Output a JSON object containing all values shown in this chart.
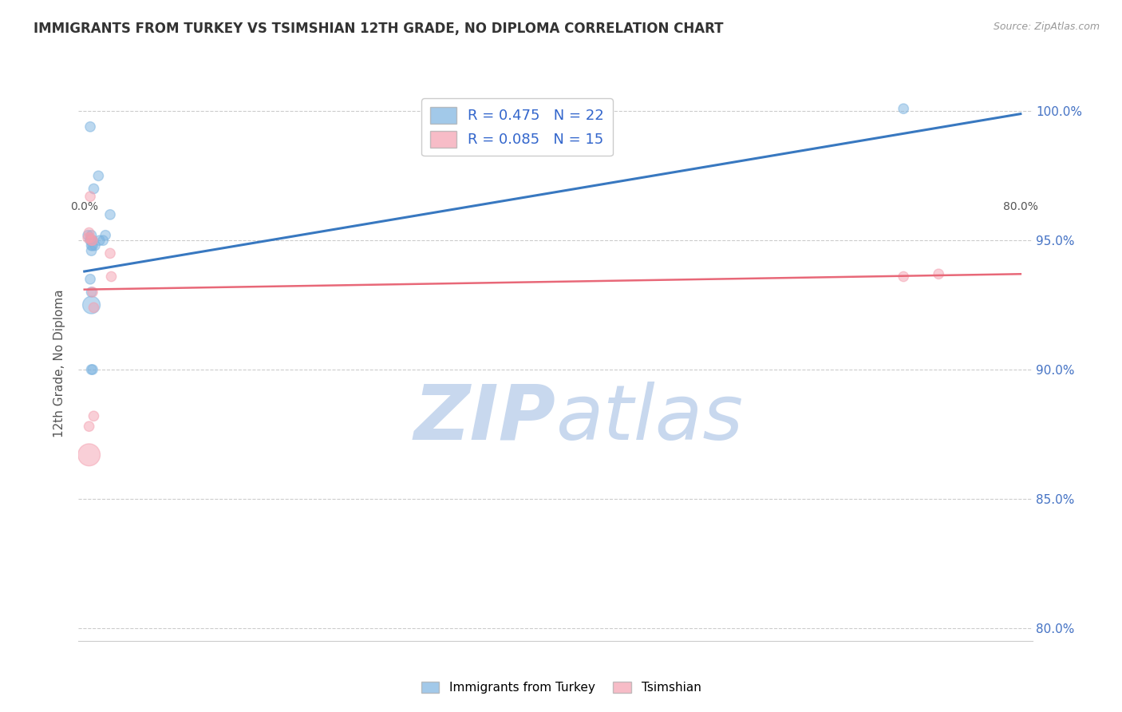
{
  "title": "IMMIGRANTS FROM TURKEY VS TSIMSHIAN 12TH GRADE, NO DIPLOMA CORRELATION CHART",
  "source": "Source: ZipAtlas.com",
  "ylabel": "12th Grade, No Diploma",
  "legend_r1": "R = 0.475   N = 22",
  "legend_r2": "R = 0.085   N = 15",
  "legend_label1": "Immigrants from Turkey",
  "legend_label2": "Tsimshian",
  "turkey_scatter_x": [
    0.005,
    0.012,
    0.008,
    0.003,
    0.005,
    0.006,
    0.007,
    0.006,
    0.006,
    0.007,
    0.009,
    0.013,
    0.018,
    0.022,
    0.006,
    0.006,
    0.007,
    0.005,
    0.016,
    0.006,
    0.7,
    0.006
  ],
  "turkey_scatter_y": [
    0.994,
    0.975,
    0.97,
    0.952,
    0.95,
    0.948,
    0.948,
    0.95,
    0.952,
    0.95,
    0.948,
    0.95,
    0.952,
    0.96,
    0.93,
    0.9,
    0.9,
    0.935,
    0.95,
    0.946,
    1.001,
    0.925
  ],
  "turkey_scatter_sizes": [
    80,
    80,
    80,
    80,
    80,
    80,
    80,
    80,
    80,
    80,
    80,
    80,
    80,
    80,
    80,
    80,
    80,
    80,
    80,
    80,
    80,
    250
  ],
  "tsimshian_scatter_x": [
    0.003,
    0.004,
    0.005,
    0.005,
    0.006,
    0.007,
    0.007,
    0.008,
    0.008,
    0.023,
    0.022,
    0.7,
    0.73,
    0.004,
    0.004
  ],
  "tsimshian_scatter_y": [
    0.951,
    0.953,
    0.967,
    0.951,
    0.95,
    0.95,
    0.93,
    0.924,
    0.882,
    0.936,
    0.945,
    0.936,
    0.937,
    0.878,
    0.867
  ],
  "tsimshian_scatter_sizes": [
    80,
    80,
    80,
    80,
    80,
    80,
    80,
    80,
    80,
    80,
    80,
    80,
    80,
    80,
    400
  ],
  "turkey_line_x": [
    0.0,
    0.8
  ],
  "turkey_line_y": [
    0.938,
    0.999
  ],
  "tsimshian_line_x": [
    0.0,
    0.8
  ],
  "tsimshian_line_y": [
    0.931,
    0.937
  ],
  "blue_color": "#7BB3E0",
  "pink_color": "#F4A0B0",
  "blue_line_color": "#3878C0",
  "pink_line_color": "#E86878",
  "watermark_zip_color": "#C8D8EE",
  "watermark_atlas_color": "#C8D8EE",
  "grid_color": "#CCCCCC",
  "bg_color": "#FFFFFF",
  "right_axis_color": "#4472C4",
  "ymin": 0.795,
  "ymax": 1.01,
  "xmin": -0.005,
  "xmax": 0.81,
  "ytick_vals": [
    0.8,
    0.85,
    0.9,
    0.95,
    1.0
  ],
  "ytick_labels": [
    "80.0%",
    "85.0%",
    "90.0%",
    "95.0%",
    "100.0%"
  ],
  "xtick_vals": [
    0.0,
    0.1,
    0.2,
    0.3,
    0.4,
    0.5,
    0.6,
    0.7,
    0.8
  ]
}
